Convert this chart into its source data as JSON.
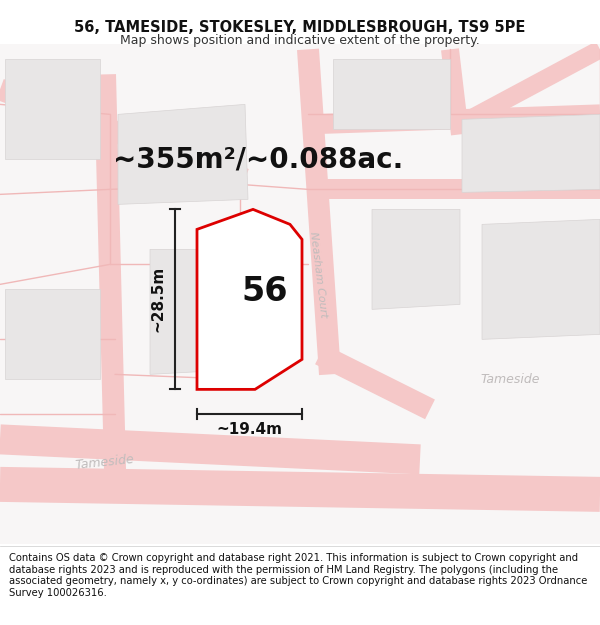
{
  "title": "56, TAMESIDE, STOKESLEY, MIDDLESBROUGH, TS9 5PE",
  "subtitle": "Map shows position and indicative extent of the property.",
  "footer": "Contains OS data © Crown copyright and database right 2021. This information is subject to Crown copyright and database rights 2023 and is reproduced with the permission of HM Land Registry. The polygons (including the associated geometry, namely x, y co-ordinates) are subject to Crown copyright and database rights 2023 Ordnance Survey 100026316.",
  "area_label": "~355m²/~0.088ac.",
  "number_label": "56",
  "width_label": "~19.4m",
  "height_label": "~28.5m",
  "bg_color": "#ffffff",
  "map_bg": "#f8f6f6",
  "plot_outline_color": "#dd0000",
  "road_color": "#f5c8c8",
  "road_line_color": "#f0b8b8",
  "building_color": "#e8e6e6",
  "building_outline": "#d8d4d4",
  "dim_line_color": "#222222",
  "street_label_color": "#c0bcbc",
  "title_fontsize": 10.5,
  "subtitle_fontsize": 9,
  "footer_fontsize": 7.2,
  "area_fontsize": 20,
  "number_fontsize": 24,
  "dim_fontsize": 11
}
